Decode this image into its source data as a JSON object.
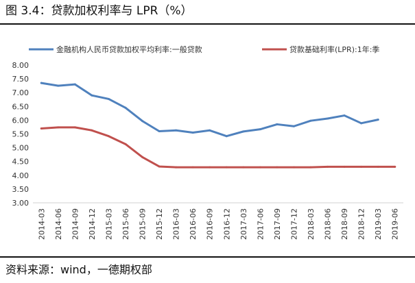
{
  "figure": {
    "title": "图 3.4：贷款加权利率与 LPR（%）",
    "source": "资料来源：wind，一德期权部"
  },
  "chart_data": {
    "type": "line",
    "title": "贷款加权利率与 LPR（%）",
    "xlabel": "",
    "ylabel": "",
    "ylim": [
      3.0,
      8.0
    ],
    "y_ticks": [
      "8.00",
      "7.50",
      "7.00",
      "6.50",
      "6.00",
      "5.50",
      "5.00",
      "4.50",
      "4.00",
      "3.50",
      "3.00"
    ],
    "grid": false,
    "legend_position": "top",
    "categories": [
      "2014-03",
      "2014-06",
      "2014-09",
      "2014-12",
      "2015-03",
      "2015-06",
      "2015-09",
      "2015-12",
      "2016-03",
      "2016-06",
      "2016-09",
      "2016-12",
      "2017-03",
      "2017-06",
      "2017-09",
      "2017-12",
      "2018-03",
      "2018-06",
      "2018-09",
      "2018-12",
      "2019-03",
      "2019-06"
    ],
    "series": [
      {
        "name": "金融机构人民币贷款加权平均利率:一般贷款",
        "color": "#4f81bd",
        "values": [
          7.35,
          7.25,
          7.3,
          6.9,
          6.77,
          6.45,
          5.97,
          5.6,
          5.63,
          5.55,
          5.63,
          5.42,
          5.59,
          5.67,
          5.85,
          5.78,
          5.98,
          6.06,
          6.17,
          5.89,
          6.02,
          null
        ]
      },
      {
        "name": "贷款基础利率(LPR):1年:季",
        "color": "#c0504d",
        "values": [
          5.7,
          5.74,
          5.74,
          5.63,
          5.42,
          5.13,
          4.66,
          4.32,
          4.29,
          4.29,
          4.29,
          4.29,
          4.29,
          4.29,
          4.29,
          4.29,
          4.29,
          4.31,
          4.31,
          4.31,
          4.31,
          4.31
        ]
      }
    ]
  }
}
